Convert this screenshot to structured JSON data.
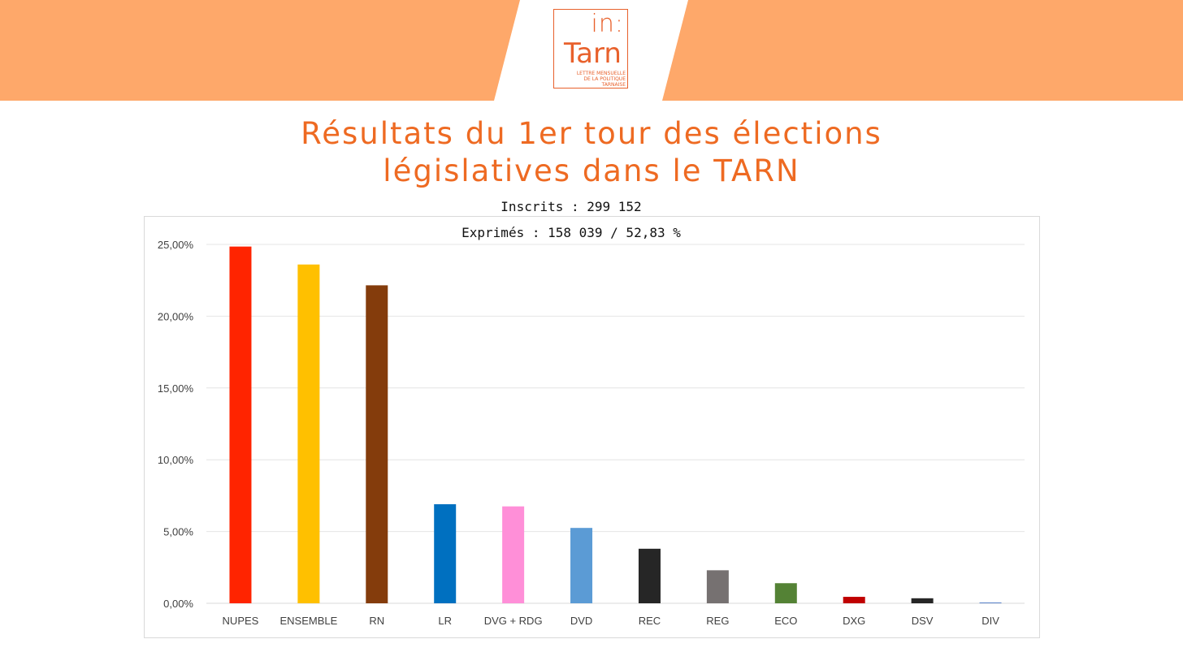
{
  "logo": {
    "line1": "in:",
    "line2": "Tarn",
    "line3a": "LETTRE MENSUELLE",
    "line3b": "DE LA POLITIQUE TARNAISE",
    "color": "#e8612c"
  },
  "banner": {
    "color": "#fea86a"
  },
  "title": {
    "line1": "Résultats du 1er tour des élections",
    "line2": "législatives dans le TARN",
    "color": "#ee6a22"
  },
  "info": {
    "inscrits": "Inscrits : 299 152",
    "exprimes": "Exprimés : 158 039 / 52,83 %"
  },
  "chart_data": {
    "type": "bar",
    "title": "",
    "xlabel": "",
    "ylabel": "",
    "ylim": [
      0,
      25
    ],
    "yticks": [
      0,
      5,
      10,
      15,
      20,
      25
    ],
    "ytick_labels": [
      "0,00%",
      "5,00%",
      "10,00%",
      "15,00%",
      "20,00%",
      "25,00%"
    ],
    "grid": true,
    "legend": "none",
    "categories": [
      "NUPES",
      "ENSEMBLE",
      "RN",
      "LR",
      "DVG + RDG",
      "DVD",
      "REC",
      "REG",
      "ECO",
      "DXG",
      "DSV",
      "DIV"
    ],
    "values": [
      24.85,
      23.6,
      22.15,
      6.9,
      6.75,
      5.25,
      3.8,
      2.3,
      1.4,
      0.45,
      0.35,
      0.05
    ],
    "colors": [
      "#ff2400",
      "#ffc000",
      "#843c0c",
      "#0070c0",
      "#ff8fd8",
      "#5b9bd5",
      "#262626",
      "#767171",
      "#548235",
      "#c00000",
      "#262626",
      "#4472c4"
    ]
  }
}
